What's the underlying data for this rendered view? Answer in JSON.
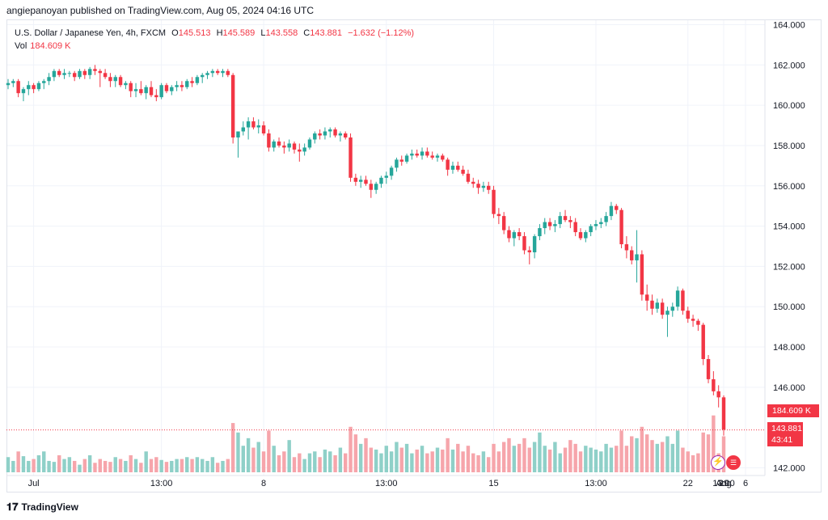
{
  "header": {
    "published": "angiepanoyan published on TradingView.com, Aug 05, 2024 04:16 UTC"
  },
  "legend": {
    "symbol": "U.S. Dollar / Japanese Yen, 4h, FXCM",
    "o_label": "O",
    "o_value": "145.513",
    "h_label": "H",
    "h_value": "145.589",
    "l_label": "L",
    "l_value": "143.558",
    "c_label": "C",
    "c_value": "143.881",
    "change": "−1.632 (−1.12%)",
    "vol_label": "Vol",
    "vol_value": "184.609 K"
  },
  "tags": {
    "volume": "184.609 K",
    "last_price": "143.881",
    "countdown": "43:41"
  },
  "footer": {
    "brand": "TradingView",
    "logo_icon": "tradingview-logo-icon"
  },
  "colors": {
    "up": "#26a69a",
    "down": "#f23645",
    "up_vol": "#8fd0c8",
    "down_vol": "#f6a5ab",
    "grid": "#f0f3fa"
  },
  "chart_data": {
    "type": "candlestick",
    "price_axis": {
      "ticks": [
        "164.000",
        "162.000",
        "160.000",
        "158.000",
        "156.000",
        "154.000",
        "152.000",
        "150.000",
        "148.000",
        "146.000",
        "142.000"
      ],
      "range": [
        141.9,
        164.1
      ]
    },
    "time_axis": {
      "ticks": [
        "Jul",
        "13:00",
        "8",
        "13:00",
        "15",
        "13:00",
        "22",
        "13:00",
        "29",
        "Aug",
        "6"
      ]
    },
    "grid": true,
    "candles": [
      [
        161.0,
        161.3,
        160.8,
        161.1
      ],
      [
        161.1,
        161.3,
        160.9,
        161.2
      ],
      [
        161.2,
        161.3,
        160.4,
        160.6
      ],
      [
        160.6,
        160.9,
        160.2,
        160.8
      ],
      [
        160.8,
        161.2,
        160.5,
        161.0
      ],
      [
        161.0,
        161.1,
        160.6,
        160.8
      ],
      [
        160.8,
        161.2,
        160.7,
        161.1
      ],
      [
        161.1,
        161.3,
        160.8,
        161.2
      ],
      [
        161.2,
        161.6,
        161.0,
        161.4
      ],
      [
        161.4,
        161.8,
        161.2,
        161.7
      ],
      [
        161.7,
        161.8,
        161.4,
        161.5
      ],
      [
        161.5,
        161.8,
        161.3,
        161.6
      ],
      [
        161.6,
        161.7,
        161.4,
        161.6
      ],
      [
        161.6,
        161.7,
        161.2,
        161.4
      ],
      [
        161.4,
        161.8,
        161.3,
        161.7
      ],
      [
        161.7,
        161.8,
        161.3,
        161.5
      ],
      [
        161.5,
        161.9,
        161.3,
        161.8
      ],
      [
        161.8,
        162.0,
        161.5,
        161.7
      ],
      [
        161.7,
        161.8,
        160.9,
        161.6
      ],
      [
        161.6,
        161.8,
        161.3,
        161.4
      ],
      [
        161.4,
        161.6,
        160.9,
        161.2
      ],
      [
        161.2,
        161.5,
        160.9,
        161.4
      ],
      [
        161.4,
        161.5,
        160.9,
        161.0
      ],
      [
        161.0,
        161.2,
        160.8,
        161.1
      ],
      [
        161.1,
        161.2,
        160.4,
        160.7
      ],
      [
        160.7,
        161.1,
        160.4,
        160.8
      ],
      [
        160.8,
        161.2,
        160.5,
        160.6
      ],
      [
        160.6,
        161.0,
        160.3,
        160.9
      ],
      [
        160.9,
        161.2,
        160.4,
        160.5
      ],
      [
        160.5,
        160.8,
        160.2,
        160.4
      ],
      [
        160.4,
        161.1,
        160.3,
        161.0
      ],
      [
        161.0,
        161.1,
        160.6,
        160.7
      ],
      [
        160.7,
        161.0,
        160.5,
        160.9
      ],
      [
        160.9,
        161.2,
        160.7,
        161.0
      ],
      [
        161.0,
        161.2,
        160.7,
        160.9
      ],
      [
        160.9,
        161.3,
        160.8,
        161.2
      ],
      [
        161.2,
        161.4,
        160.9,
        161.1
      ],
      [
        161.1,
        161.5,
        161.0,
        161.4
      ],
      [
        161.4,
        161.6,
        161.1,
        161.5
      ],
      [
        161.5,
        161.7,
        161.3,
        161.6
      ],
      [
        161.6,
        161.8,
        161.4,
        161.7
      ],
      [
        161.7,
        161.8,
        161.5,
        161.6
      ],
      [
        161.6,
        161.8,
        161.4,
        161.7
      ],
      [
        161.7,
        161.8,
        161.4,
        161.5
      ],
      [
        161.5,
        161.6,
        158.1,
        158.4
      ],
      [
        158.4,
        158.6,
        157.4,
        158.7
      ],
      [
        158.7,
        159.2,
        158.5,
        158.9
      ],
      [
        158.9,
        159.4,
        158.3,
        159.2
      ],
      [
        159.2,
        159.4,
        158.8,
        158.9
      ],
      [
        158.9,
        159.3,
        158.6,
        159.0
      ],
      [
        159.0,
        159.2,
        158.5,
        158.6
      ],
      [
        158.6,
        158.8,
        157.7,
        157.9
      ],
      [
        157.9,
        158.3,
        157.7,
        158.2
      ],
      [
        158.2,
        158.4,
        157.9,
        158.0
      ],
      [
        158.0,
        158.2,
        157.6,
        157.9
      ],
      [
        157.9,
        158.3,
        157.7,
        158.1
      ],
      [
        158.1,
        158.2,
        157.6,
        157.8
      ],
      [
        157.8,
        158.1,
        157.2,
        157.7
      ],
      [
        157.7,
        158.1,
        157.5,
        157.9
      ],
      [
        157.9,
        158.4,
        157.8,
        158.3
      ],
      [
        158.3,
        158.7,
        158.1,
        158.6
      ],
      [
        158.6,
        158.8,
        158.3,
        158.5
      ],
      [
        158.5,
        158.9,
        158.3,
        158.7
      ],
      [
        158.7,
        158.9,
        158.4,
        158.8
      ],
      [
        158.8,
        158.9,
        158.4,
        158.5
      ],
      [
        158.5,
        158.7,
        158.2,
        158.6
      ],
      [
        158.6,
        158.7,
        158.3,
        158.4
      ],
      [
        158.4,
        158.6,
        156.2,
        156.4
      ],
      [
        156.4,
        156.6,
        156.0,
        156.2
      ],
      [
        156.2,
        156.5,
        155.9,
        156.3
      ],
      [
        156.3,
        156.5,
        156.0,
        156.1
      ],
      [
        156.1,
        156.3,
        155.4,
        155.8
      ],
      [
        155.8,
        156.2,
        155.6,
        156.1
      ],
      [
        156.1,
        156.5,
        155.9,
        156.4
      ],
      [
        156.4,
        156.7,
        156.1,
        156.5
      ],
      [
        156.5,
        157.0,
        156.3,
        156.9
      ],
      [
        156.9,
        157.4,
        156.7,
        157.3
      ],
      [
        157.3,
        157.5,
        157.0,
        157.2
      ],
      [
        157.2,
        157.6,
        157.1,
        157.5
      ],
      [
        157.5,
        157.8,
        157.3,
        157.6
      ],
      [
        157.6,
        157.8,
        157.4,
        157.5
      ],
      [
        157.5,
        157.9,
        157.3,
        157.7
      ],
      [
        157.7,
        157.9,
        157.4,
        157.5
      ],
      [
        157.5,
        157.7,
        157.3,
        157.4
      ],
      [
        157.4,
        157.6,
        157.2,
        157.5
      ],
      [
        157.5,
        157.6,
        157.2,
        157.3
      ],
      [
        157.3,
        157.4,
        156.5,
        156.8
      ],
      [
        156.8,
        157.2,
        156.6,
        157.0
      ],
      [
        157.0,
        157.2,
        156.7,
        156.8
      ],
      [
        156.8,
        157.0,
        156.5,
        156.6
      ],
      [
        156.6,
        156.8,
        156.1,
        156.2
      ],
      [
        156.2,
        156.4,
        155.9,
        156.1
      ],
      [
        156.1,
        156.3,
        155.6,
        155.9
      ],
      [
        155.9,
        156.2,
        155.7,
        156.0
      ],
      [
        156.0,
        156.2,
        155.6,
        155.8
      ],
      [
        155.8,
        156.0,
        154.4,
        154.6
      ],
      [
        154.6,
        154.9,
        154.1,
        154.5
      ],
      [
        154.5,
        154.7,
        153.6,
        153.8
      ],
      [
        153.8,
        154.0,
        153.2,
        153.4
      ],
      [
        153.4,
        153.8,
        153.0,
        153.7
      ],
      [
        153.7,
        153.9,
        153.3,
        153.5
      ],
      [
        153.5,
        153.7,
        152.6,
        152.8
      ],
      [
        152.8,
        153.0,
        152.1,
        152.7
      ],
      [
        152.7,
        153.6,
        152.4,
        153.5
      ],
      [
        153.5,
        154.1,
        153.3,
        153.9
      ],
      [
        153.9,
        154.4,
        153.6,
        154.2
      ],
      [
        154.2,
        154.4,
        153.8,
        154.0
      ],
      [
        154.0,
        154.3,
        153.7,
        154.1
      ],
      [
        154.1,
        154.7,
        153.9,
        154.5
      ],
      [
        154.5,
        154.8,
        154.2,
        154.3
      ],
      [
        154.3,
        154.5,
        153.9,
        154.2
      ],
      [
        154.2,
        154.4,
        153.5,
        153.7
      ],
      [
        153.7,
        153.9,
        153.3,
        153.4
      ],
      [
        153.4,
        153.8,
        153.2,
        153.7
      ],
      [
        153.7,
        154.1,
        153.5,
        154.0
      ],
      [
        154.0,
        154.3,
        153.8,
        154.1
      ],
      [
        154.1,
        154.4,
        153.9,
        154.2
      ],
      [
        154.2,
        154.7,
        154.0,
        154.5
      ],
      [
        154.5,
        155.2,
        154.3,
        155.0
      ],
      [
        155.0,
        155.1,
        154.6,
        154.8
      ],
      [
        154.8,
        154.9,
        152.9,
        153.1
      ],
      [
        153.1,
        153.5,
        152.4,
        152.8
      ],
      [
        152.8,
        153.0,
        152.1,
        152.3
      ],
      [
        152.3,
        153.8,
        151.2,
        152.6
      ],
      [
        152.6,
        152.8,
        150.3,
        150.6
      ],
      [
        150.6,
        151.1,
        149.8,
        150.3
      ],
      [
        150.3,
        150.6,
        149.6,
        149.9
      ],
      [
        149.9,
        150.4,
        149.7,
        150.2
      ],
      [
        150.2,
        150.4,
        149.4,
        149.6
      ],
      [
        149.6,
        150.0,
        148.5,
        149.8
      ],
      [
        149.8,
        150.2,
        149.5,
        150.0
      ],
      [
        150.0,
        151.0,
        149.8,
        150.8
      ],
      [
        150.8,
        150.9,
        149.6,
        149.8
      ],
      [
        149.8,
        150.0,
        149.2,
        149.4
      ],
      [
        149.4,
        149.6,
        149.0,
        149.3
      ],
      [
        149.3,
        149.4,
        148.8,
        149.1
      ],
      [
        149.1,
        149.2,
        147.1,
        147.4
      ],
      [
        147.4,
        147.6,
        146.2,
        146.4
      ],
      [
        146.4,
        146.8,
        145.6,
        145.8
      ],
      [
        145.8,
        146.1,
        145.0,
        145.5
      ],
      [
        145.5,
        145.6,
        143.6,
        143.9
      ]
    ],
    "volume_max": 70,
    "volumes": [
      16,
      12,
      22,
      17,
      12,
      14,
      18,
      22,
      12,
      11,
      18,
      14,
      16,
      12,
      8,
      14,
      18,
      10,
      14,
      12,
      11,
      16,
      14,
      12,
      18,
      14,
      10,
      22,
      14,
      16,
      13,
      11,
      12,
      14,
      14,
      16,
      14,
      16,
      14,
      12,
      16,
      10,
      12,
      14,
      52,
      42,
      28,
      36,
      26,
      32,
      22,
      44,
      28,
      18,
      22,
      34,
      16,
      20,
      14,
      20,
      22,
      16,
      24,
      22,
      18,
      26,
      20,
      48,
      40,
      30,
      36,
      26,
      24,
      20,
      28,
      22,
      32,
      26,
      30,
      20,
      24,
      28,
      20,
      22,
      26,
      24,
      36,
      24,
      30,
      22,
      28,
      20,
      18,
      22,
      16,
      30,
      22,
      32,
      36,
      28,
      30,
      36,
      26,
      32,
      42,
      28,
      24,
      32,
      20,
      26,
      34,
      30,
      22,
      28,
      26,
      24,
      22,
      30,
      26,
      28,
      44,
      28,
      38,
      36,
      48,
      40,
      34,
      30,
      32,
      38,
      30,
      44,
      26,
      22,
      18,
      20,
      42,
      40,
      60,
      20,
      38
    ]
  }
}
